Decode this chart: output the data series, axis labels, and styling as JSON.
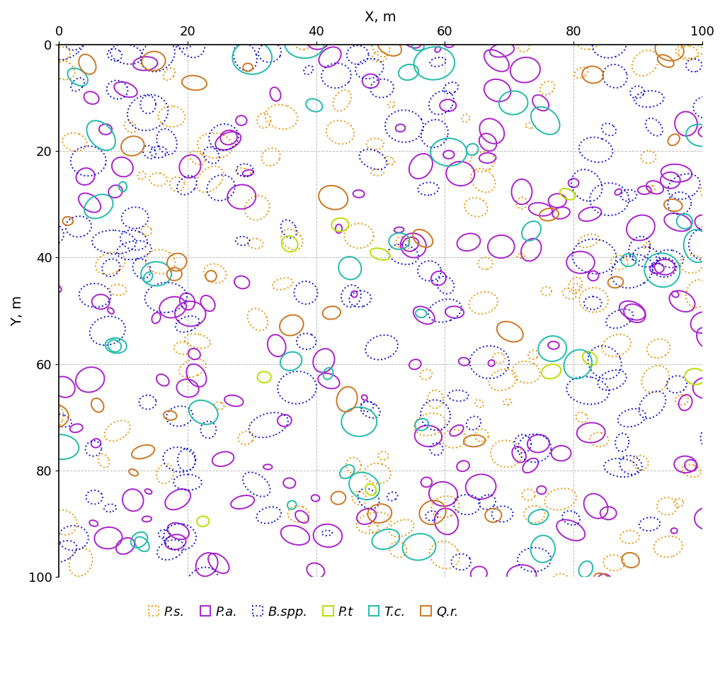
{
  "xlabel": "X, m",
  "ylabel": "Y, m",
  "xlim": [
    0,
    100
  ],
  "ylim": [
    0,
    100
  ],
  "xticks": [
    0,
    20,
    40,
    60,
    80,
    100
  ],
  "yticks": [
    0,
    20,
    40,
    60,
    80,
    100
  ],
  "figsize": [
    10.24,
    9.61
  ],
  "dpi": 100,
  "species": {
    "Ps": {
      "label": "P.s.",
      "color": "#E89400",
      "linestyle": "dotted",
      "linewidth": 1.4
    },
    "Pa": {
      "label": "P.a.",
      "color": "#AA22CC",
      "linestyle": "solid",
      "linewidth": 1.4
    },
    "Bspp": {
      "label": "B.spp.",
      "color": "#1111CC",
      "linestyle": "dotted",
      "linewidth": 1.4
    },
    "Pt": {
      "label": "P.t",
      "color": "#BBDD00",
      "linestyle": "solid",
      "linewidth": 1.4
    },
    "Tc": {
      "label": "T.c.",
      "color": "#22BBAA",
      "linestyle": "solid",
      "linewidth": 1.4
    },
    "Qr": {
      "label": "Q.r.",
      "color": "#CC7722",
      "linestyle": "solid",
      "linewidth": 1.4
    }
  },
  "seed": 12345,
  "n_trees": {
    "Ps": 120,
    "Pa": 150,
    "Bspp": 130,
    "Pt": 10,
    "Tc": 45,
    "Qr": 35
  },
  "size_range": {
    "Ps": [
      1.2,
      5.5
    ],
    "Pa": [
      1.0,
      5.0
    ],
    "Bspp": [
      1.5,
      7.0
    ],
    "Pt": [
      1.5,
      3.5
    ],
    "Tc": [
      1.5,
      6.5
    ],
    "Qr": [
      1.5,
      5.0
    ]
  },
  "eccentricity_range": [
    0.6,
    1.0
  ],
  "grid_color": "#BBBBBB",
  "background_color": "#FFFFFF",
  "tick_label_fontsize": 13,
  "axis_label_fontsize": 14,
  "legend_fontsize": 13
}
